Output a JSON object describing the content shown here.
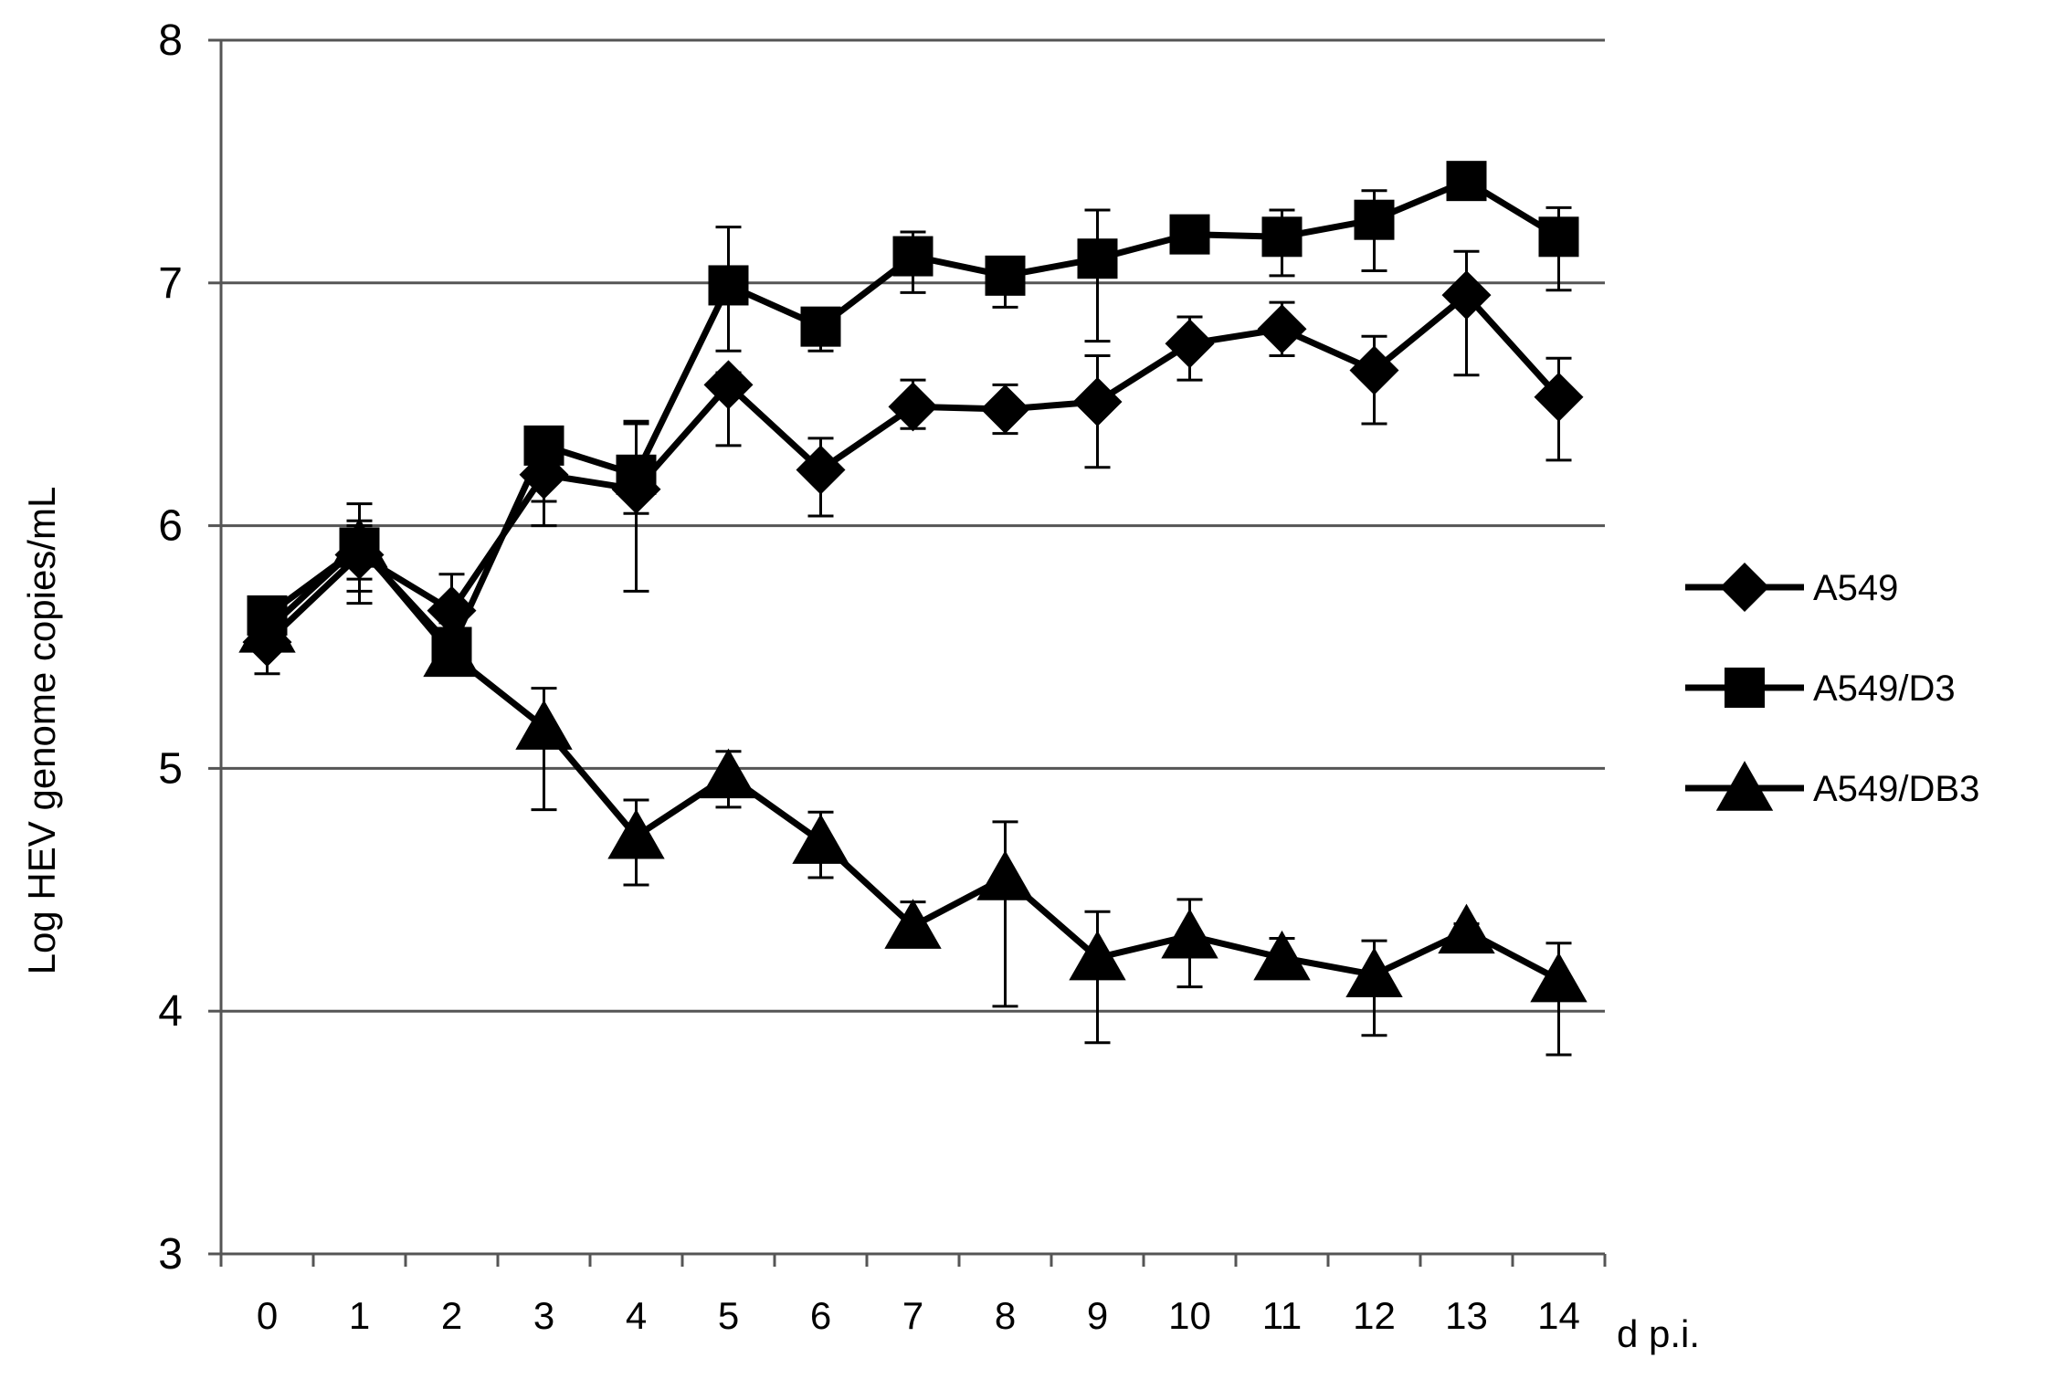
{
  "chart_data": {
    "type": "line",
    "ylabel": "Log HEV genome copies/mL",
    "xlabel": "d p.i.",
    "categories": [
      "0",
      "1",
      "2",
      "3",
      "4",
      "5",
      "6",
      "7",
      "8",
      "9",
      "10",
      "11",
      "12",
      "13",
      "14"
    ],
    "ylim": [
      3,
      8
    ],
    "yticks": [
      "3",
      "4",
      "5",
      "6",
      "7",
      "8"
    ],
    "grid": "horizontal major gridlines",
    "legend": "right",
    "series": [
      {
        "name": "A549",
        "marker": "diamond",
        "values": [
          5.52,
          5.88,
          5.65,
          6.21,
          6.15,
          6.58,
          6.23,
          6.49,
          6.48,
          6.51,
          6.75,
          6.81,
          6.64,
          6.95,
          6.53
        ],
        "err_upper": [
          5.62,
          6.0,
          5.8,
          6.33,
          6.42,
          6.63,
          6.36,
          6.6,
          6.58,
          6.7,
          6.86,
          6.92,
          6.78,
          7.13,
          6.69
        ],
        "err_lower": [
          5.39,
          5.78,
          5.52,
          6.0,
          5.73,
          6.33,
          6.04,
          6.4,
          6.38,
          6.24,
          6.6,
          6.7,
          6.42,
          6.62,
          6.27
        ]
      },
      {
        "name": "A549/D3",
        "marker": "square",
        "values": [
          5.63,
          5.91,
          5.5,
          6.33,
          6.21,
          6.99,
          6.82,
          7.11,
          7.03,
          7.1,
          7.2,
          7.19,
          7.26,
          7.42,
          7.19
        ],
        "err_upper": [
          5.63,
          6.02,
          5.6,
          6.35,
          6.43,
          7.23,
          6.86,
          7.21,
          7.1,
          7.3,
          7.22,
          7.3,
          7.38,
          7.42,
          7.31
        ],
        "err_lower": [
          5.6,
          5.73,
          5.42,
          6.1,
          6.05,
          6.72,
          6.72,
          6.96,
          6.9,
          6.76,
          7.15,
          7.03,
          7.05,
          7.4,
          6.97
        ]
      },
      {
        "name": "A549/DB3",
        "marker": "triangle",
        "values": [
          5.57,
          5.92,
          5.47,
          5.17,
          4.72,
          4.97,
          4.7,
          4.35,
          4.55,
          4.22,
          4.31,
          4.22,
          4.15,
          4.33,
          4.13
        ],
        "err_upper": [
          5.58,
          6.09,
          5.5,
          5.33,
          4.87,
          5.07,
          4.82,
          4.45,
          4.78,
          4.41,
          4.46,
          4.3,
          4.29,
          4.36,
          4.28
        ],
        "err_lower": [
          5.55,
          5.68,
          5.42,
          4.83,
          4.52,
          4.84,
          4.55,
          4.3,
          4.02,
          3.87,
          4.1,
          4.15,
          3.9,
          4.3,
          3.82
        ]
      }
    ]
  }
}
